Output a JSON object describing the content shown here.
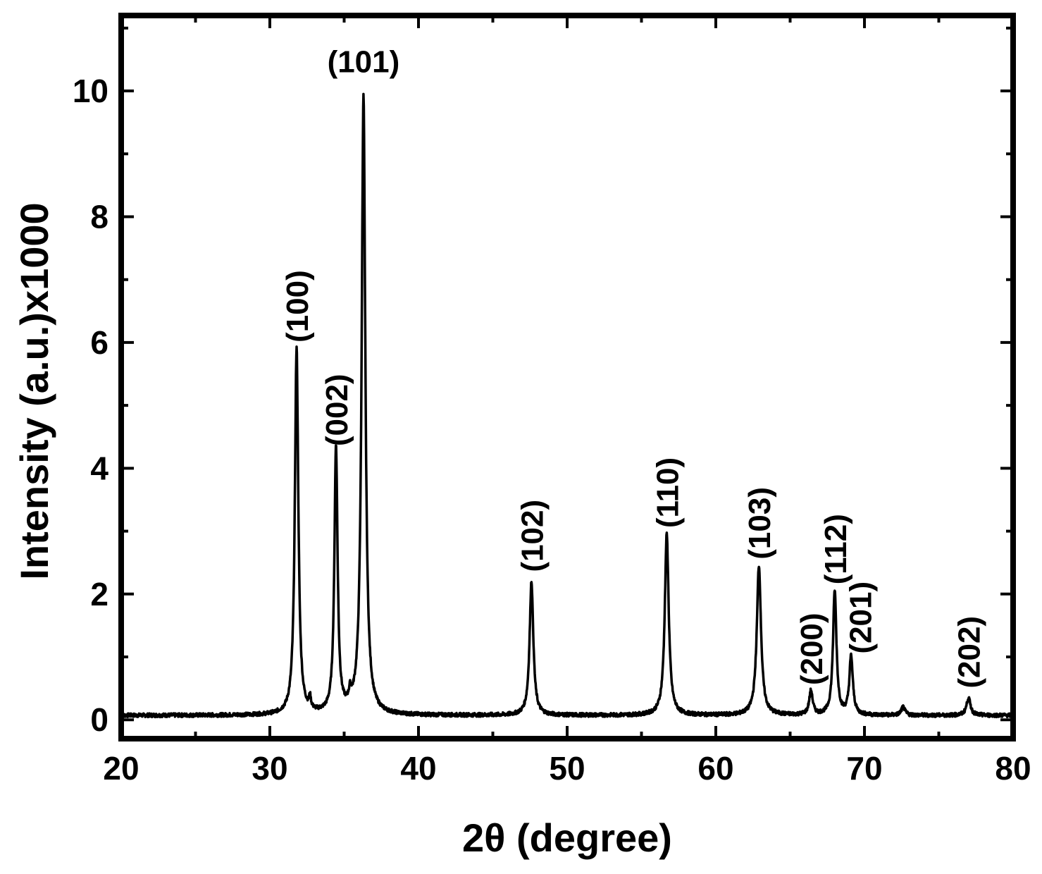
{
  "chart_data": {
    "type": "line",
    "xlabel": "2θ (degree)",
    "ylabel": "Intensity (a.u.)x1000",
    "xlim": [
      20,
      80
    ],
    "ylim": [
      -0.3,
      11.2
    ],
    "xticks": [
      20,
      30,
      40,
      50,
      60,
      70,
      80
    ],
    "yticks": [
      0,
      2,
      4,
      6,
      8,
      10
    ],
    "grid": false,
    "line_color": "#000000",
    "baseline": 0.07,
    "peaks": [
      {
        "x": 31.8,
        "y": 5.9,
        "width": 0.28
      },
      {
        "x": 32.7,
        "y": 0.25,
        "width": 0.15
      },
      {
        "x": 34.45,
        "y": 4.3,
        "width": 0.26
      },
      {
        "x": 35.4,
        "y": 0.25,
        "width": 0.2
      },
      {
        "x": 36.3,
        "y": 9.9,
        "width": 0.3
      },
      {
        "x": 47.6,
        "y": 2.2,
        "width": 0.3
      },
      {
        "x": 56.7,
        "y": 2.95,
        "width": 0.32
      },
      {
        "x": 62.9,
        "y": 2.45,
        "width": 0.34
      },
      {
        "x": 66.4,
        "y": 0.45,
        "width": 0.28
      },
      {
        "x": 68.0,
        "y": 2.05,
        "width": 0.28
      },
      {
        "x": 69.1,
        "y": 1.0,
        "width": 0.28
      },
      {
        "x": 72.6,
        "y": 0.2,
        "width": 0.3
      },
      {
        "x": 77.0,
        "y": 0.35,
        "width": 0.32
      }
    ],
    "annotations": [
      {
        "text": "(100)",
        "x": 31.8,
        "y": 6.0,
        "rotate": true
      },
      {
        "text": "(002)",
        "x": 34.45,
        "y": 4.35,
        "rotate": true
      },
      {
        "text": "(101)",
        "x": 36.3,
        "y": 10.3,
        "rotate": false
      },
      {
        "text": "(102)",
        "x": 47.6,
        "y": 2.35,
        "rotate": true
      },
      {
        "text": "(110)",
        "x": 56.7,
        "y": 3.05,
        "rotate": true
      },
      {
        "text": "(103)",
        "x": 62.9,
        "y": 2.55,
        "rotate": true
      },
      {
        "text": "(200)",
        "x": 66.4,
        "y": 0.55,
        "rotate": true
      },
      {
        "text": "(112)",
        "x": 68.0,
        "y": 2.15,
        "rotate": true
      },
      {
        "text": "(201)",
        "x": 69.7,
        "y": 1.05,
        "rotate": true
      },
      {
        "text": "(202)",
        "x": 77.0,
        "y": 0.5,
        "rotate": true
      }
    ]
  }
}
